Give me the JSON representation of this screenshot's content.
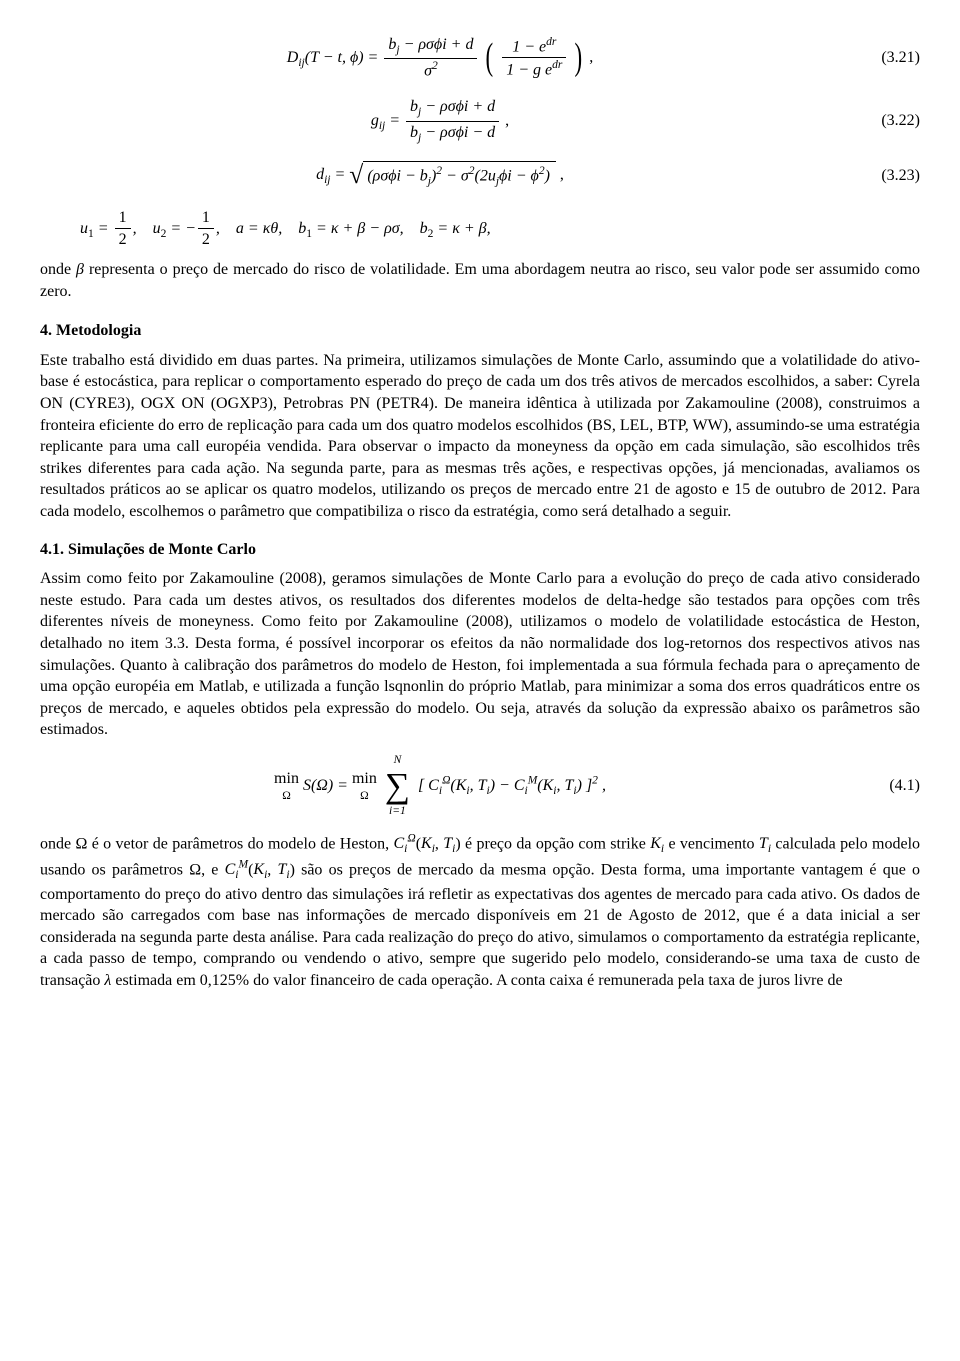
{
  "eq321": {
    "lhs": "D<span class='sub'>ij</span>(T − t, ϕ) =",
    "frac1_num": "b<span class='sub'>j</span> − ρσϕi + d",
    "frac1_den": "σ<span class='sup'>2</span>",
    "frac2_num": "1 − e<span class='sup'>dr</span>",
    "frac2_den": "1 − g e<span class='sup'>dr</span>",
    "num": "(3.21)"
  },
  "eq322": {
    "lhs": "g<span class='sub'>ij</span> =",
    "num_txt": "b<span class='sub'>j</span> − ρσϕi + d",
    "den_txt": "b<span class='sub'>j</span> − ρσϕi − d",
    "num": "(3.22)"
  },
  "eq323": {
    "lhs": "d<span class='sub'>ij</span> =",
    "radicand": "(ρσϕi − b<span class='sub'>j</span>)<span class='sup'>2</span> − σ<span class='sup'>2</span>(2u<span class='sub'>j</span>ϕi − ϕ<span class='sup'>2</span>)",
    "num": "(3.23)"
  },
  "defs_line": "u<span class='sub rm'>1</span> = <span class='frac'><span class='num rm'>1</span><span class='den rm'>2</span></span>,&nbsp;&nbsp;&nbsp; u<span class='sub rm'>2</span> = −<span class='frac'><span class='num rm'>1</span><span class='den rm'>2</span></span>,&nbsp;&nbsp;&nbsp; a = κθ,&nbsp;&nbsp;&nbsp; b<span class='sub rm'>1</span> = κ + β − ρσ,&nbsp;&nbsp;&nbsp; b<span class='sub rm'>2</span> = κ + β,",
  "para_after_defs": "onde <i>β</i> representa o preço de mercado do risco de volatilidade. Em uma abordagem neutra ao risco, seu valor pode ser assumido como zero.",
  "sec4_title": "4. Metodologia",
  "sec4_para": "Este trabalho está dividido em duas partes. Na primeira, utilizamos simulações de Monte Carlo, assumindo que a volatilidade do ativo-base é estocástica, para replicar o comportamento esperado do preço de cada um dos três ativos de mercados escolhidos, a saber: Cyrela ON (CYRE3), OGX ON (OGXP3), Petrobras PN (PETR4). De maneira idêntica à utilizada por Zakamouline (2008), construimos a fronteira eficiente do erro de replicação para cada um dos quatro modelos escolhidos (BS, LEL, BTP, WW), assumindo-se uma estratégia replicante para uma call européia vendida. Para observar o impacto da moneyness da opção em cada simulação, são escolhidos três strikes diferentes para cada ação. Na segunda parte, para as mesmas três ações, e respectivas opções, já mencionadas, avaliamos os resultados práticos ao se aplicar os quatro modelos, utilizando os preços de mercado entre 21 de agosto e 15 de outubro de 2012. Para cada modelo, escolhemos o parâmetro que compatibiliza o risco da estratégia, como será detalhado a seguir.",
  "sec41_title": "4.1. Simulações de Monte Carlo",
  "sec41_para": "Assim como feito por Zakamouline (2008), geramos simulações de Monte Carlo para a evolução do preço de cada ativo considerado neste estudo. Para cada um destes ativos, os resultados dos diferentes modelos de delta-hedge são testados para opções com três diferentes níveis de moneyness. Como feito por Zakamouline (2008), utilizamos o modelo de volatilidade estocástica de Heston, detalhado no item 3.3. Desta forma, é possível incorporar os efeitos da não normalidade dos log-retornos dos respectivos ativos nas simulações. Quanto à calibração dos parâmetros do modelo de Heston, foi implementada a sua fórmula fechada para o apreçamento de uma opção européia em Matlab, e utilizada a função lsqnonlin do próprio Matlab, para minimizar a soma dos erros quadráticos entre os preços de mercado, e aqueles obtidos pela expressão do modelo. Ou seja, através da solução da expressão abaixo os parâmetros são estimados.",
  "eq41": {
    "body": "<span class='minlabel'><span class='rm'>min</span><span class='under'>Ω</span></span> S(Ω) = <span class='minlabel'><span class='rm'>min</span><span class='under'>Ω</span></span> <span class='sumsym'><span class='top'>N</span><span class='sigma'>∑</span><span class='bot'>i=1</span></span> [ C<span class='sub'>i</span><span class='sup'>Ω</span>(K<span class='sub'>i</span>, T<span class='sub'>i</span>) − C<span class='sub'>i</span><span class='sup'>M</span>(K<span class='sub'>i</span>, T<span class='sub'>i</span>) ]<span class='sup'>2</span> ,",
    "num": "(4.1)"
  },
  "para_after_41": "onde Ω é o vetor de parâmetros do modelo de Heston, <i>C<span class='sub'>i</span><span class='sup'>Ω</span></i>(<i>K<span class='sub'>i</span></i>, <i>T<span class='sub'>i</span></i>) é preço da opção com strike <i>K<span class='sub'>i</span></i> e vencimento <i>T<span class='sub'>i</span></i> calculada pelo modelo usando os parâmetros Ω, e <i>C<span class='sub'>i</span><span class='sup'>M</span></i>(<i>K<span class='sub'>i</span></i>, <i>T<span class='sub'>i</span></i>) são os preços de mercado da mesma opção. Desta forma, uma importante vantagem é que o comportamento do preço do ativo dentro das simulações irá refletir as expectativas dos agentes de mercado para cada ativo. Os dados de mercado são carregados com base nas informações de mercado disponíveis em 21 de Agosto de 2012, que é a data inicial a ser considerada na segunda parte desta análise. Para cada realização do preço do ativo, simulamos o comportamento da estratégia replicante, a cada passo de tempo, comprando ou vendendo o ativo, sempre que sugerido pelo modelo, considerando-se uma taxa de custo de transação <i>λ</i> estimada em 0,125% do valor financeiro de cada operação. A conta caixa é remunerada pela taxa de juros livre de"
}
